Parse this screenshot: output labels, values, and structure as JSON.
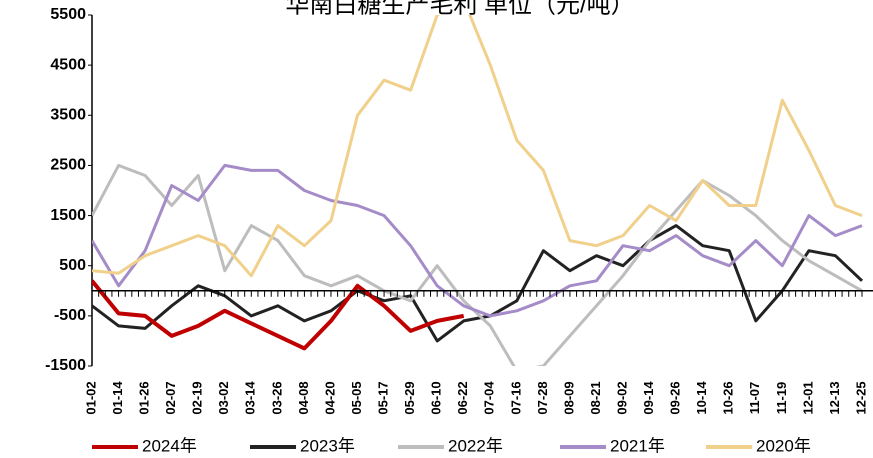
{
  "chart_data": {
    "type": "line",
    "title": "华南白糖生产毛利 单位（元/吨）",
    "categories": [
      "01-02",
      "01-14",
      "01-26",
      "02-07",
      "02-19",
      "03-02",
      "03-14",
      "03-26",
      "04-08",
      "04-20",
      "05-05",
      "05-17",
      "05-29",
      "06-10",
      "06-22",
      "07-04",
      "07-16",
      "07-28",
      "08-09",
      "08-21",
      "09-02",
      "09-14",
      "09-26",
      "10-14",
      "10-26",
      "11-07",
      "11-19",
      "12-01",
      "12-13",
      "12-25"
    ],
    "ylim": [
      -1500,
      5500
    ],
    "yticks": [
      -1500,
      -500,
      500,
      1500,
      2500,
      3500,
      4500,
      5500
    ],
    "series": [
      {
        "name": "2023年",
        "color": "#222222",
        "values": [
          -300,
          -700,
          -750,
          -300,
          100,
          -100,
          -500,
          -300,
          -600,
          -400,
          0,
          -200,
          -100,
          -1000,
          -600,
          -500,
          -200,
          800,
          400,
          700,
          500,
          1000,
          1300,
          900,
          800,
          -600,
          0,
          800,
          700,
          200
        ]
      },
      {
        "name": "2022年",
        "color": "#bdbdbd",
        "values": [
          1500,
          2500,
          2300,
          1700,
          2300,
          400,
          1300,
          1000,
          300,
          100,
          300,
          0,
          -200,
          500,
          -200,
          -700,
          -1600,
          -1500,
          -900,
          -300,
          300,
          1000,
          1600,
          2200,
          1900,
          1500,
          1000,
          600,
          300,
          0
        ]
      },
      {
        "name": "2021年",
        "color": "#a58cc8",
        "values": [
          1000,
          100,
          800,
          2100,
          1800,
          2500,
          2400,
          2400,
          2000,
          1800,
          1700,
          1500,
          900,
          100,
          -300,
          -500,
          -400,
          -200,
          100,
          200,
          900,
          800,
          1100,
          700,
          500,
          1000,
          500,
          1500,
          1100,
          1300
        ]
      },
      {
        "name": "2020年",
        "color": "#f0d08a",
        "values": [
          400,
          350,
          700,
          900,
          1100,
          900,
          300,
          1300,
          900,
          1400,
          3500,
          4200,
          4000,
          5500,
          5800,
          4500,
          3000,
          2400,
          1000,
          900,
          1100,
          1700,
          1400,
          2200,
          1700,
          1700,
          3800,
          2800,
          1700,
          1500
        ]
      },
      {
        "name": "2024年",
        "color": "#c00000",
        "values": [
          200,
          -450,
          -500,
          -900,
          -700,
          -400,
          -650,
          -900,
          -1150,
          -600,
          100,
          -300,
          -800,
          -600,
          -500,
          null,
          null,
          null,
          null,
          null,
          null,
          null,
          null,
          null,
          null,
          null,
          null,
          null,
          null,
          null
        ]
      }
    ],
    "legend_order": [
      4,
      0,
      1,
      2,
      3
    ]
  }
}
